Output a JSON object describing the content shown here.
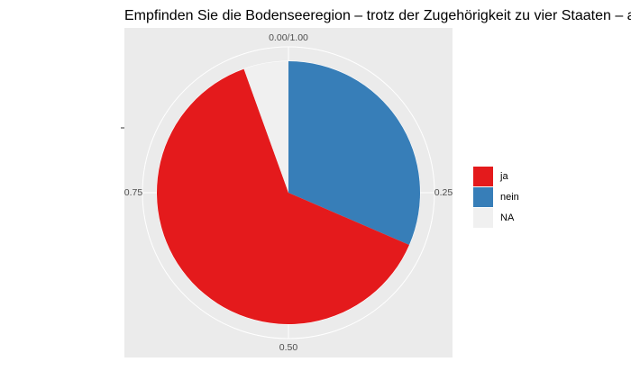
{
  "chart_data": {
    "type": "pie",
    "title": "Empfinden Sie die Bodenseeregion – trotz der Zugehörigkeit zu vier Staaten – als gemeinsamen Lebensraum?",
    "xlabel": "",
    "ylabel": "",
    "slices": [
      {
        "label": "nein",
        "value": 0.315,
        "color": "#377EB8"
      },
      {
        "label": "ja",
        "value": 0.63,
        "color": "#E41A1C"
      },
      {
        "label": "NA",
        "value": 0.055,
        "color": "#F0F0F0"
      }
    ],
    "angular_ticks": [
      "0.00/1.00",
      "0.25",
      "0.50",
      "0.75"
    ],
    "legend": {
      "position": "right",
      "entries": [
        {
          "label": "ja",
          "color": "#E41A1C"
        },
        {
          "label": "nein",
          "color": "#377EB8"
        },
        {
          "label": "NA",
          "color": "#F0F0F0"
        }
      ]
    },
    "panel_background": "#EBEBEB",
    "grid_color": "#FFFFFF"
  }
}
